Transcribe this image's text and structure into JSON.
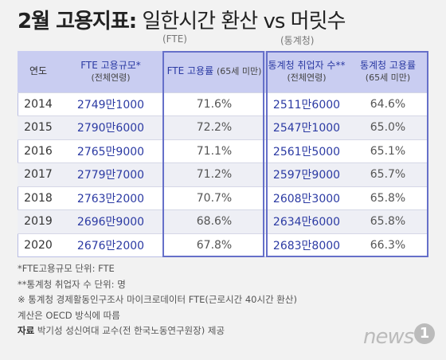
{
  "title": {
    "prefix": "2월 고용지표",
    "colon": ":",
    "rest": "일한시간 환산 vs 머릿수"
  },
  "subheads": {
    "fte": "(FTE)",
    "stats": "(통계청)"
  },
  "table": {
    "headers": [
      {
        "main": "연도",
        "sub": ""
      },
      {
        "main": "FTE 고용규모*",
        "sub": "(전체연령)"
      },
      {
        "main": "FTE 고용률",
        "sub": "(65세 미만)"
      },
      {
        "main": "통계청 취업자 수**",
        "sub": "(전체연령)"
      },
      {
        "main": "통계청 고용률",
        "sub": "(65세 미만)"
      }
    ],
    "rows": [
      [
        "2014",
        "2749만1000",
        "71.6%",
        "2511만6000",
        "64.6%"
      ],
      [
        "2015",
        "2790만6000",
        "72.2%",
        "2547만1000",
        "65.0%"
      ],
      [
        "2016",
        "2765만9000",
        "71.1%",
        "2561만5000",
        "65.1%"
      ],
      [
        "2017",
        "2779만7000",
        "71.2%",
        "2597만9000",
        "65.7%"
      ],
      [
        "2018",
        "2763만2000",
        "70.7%",
        "2608만3000",
        "65.8%"
      ],
      [
        "2019",
        "2696만9000",
        "68.6%",
        "2634만6000",
        "65.8%"
      ],
      [
        "2020",
        "2676만2000",
        "67.8%",
        "2683만8000",
        "66.3%"
      ]
    ]
  },
  "notes": {
    "n1": "*FTE고용규모 단위: FTE",
    "n2": "**통계청 취업자 수 단위: 명",
    "n3": "※ 통계청 경제활동인구조사 마이크로데이터 FTE(근로시간 40시간 환산)",
    "n4": "계산은 OECD 방식에 따름",
    "source_label": "자료",
    "source": " 박기성 성신여대 교수(전 한국노동연구원장) 제공"
  },
  "logo": {
    "word": "news",
    "mark": "1"
  }
}
